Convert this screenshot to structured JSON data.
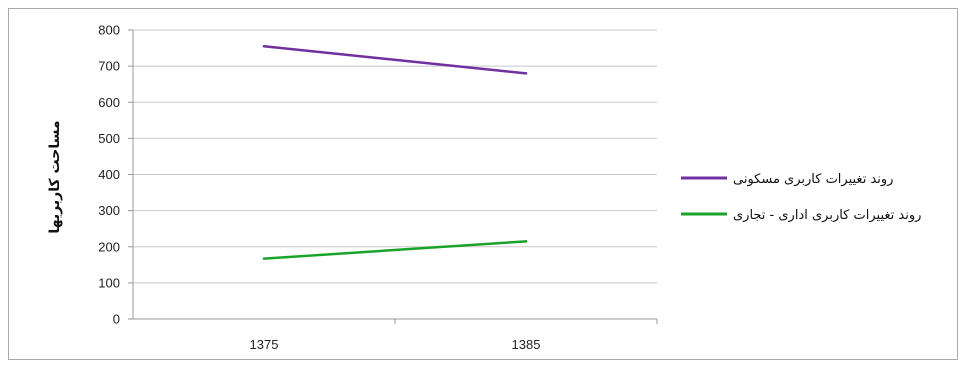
{
  "chart_data": {
    "type": "line",
    "categories": [
      "1375",
      "1385"
    ],
    "series": [
      {
        "name": "روند تغییرات کاربری مسکونی",
        "values": [
          755,
          680
        ],
        "color": "#7030a0"
      },
      {
        "name": "روند تغییرات کاربری اداری - تجاری",
        "values": [
          167,
          215
        ],
        "color": "#1aa32a"
      }
    ],
    "title": "",
    "xlabel": "",
    "ylabel": "مساحت کاربریها",
    "ylim": [
      0,
      800
    ],
    "yticks": [
      0,
      100,
      200,
      300,
      400,
      500,
      600,
      700,
      800
    ],
    "grid": true,
    "legend_position": "right"
  }
}
